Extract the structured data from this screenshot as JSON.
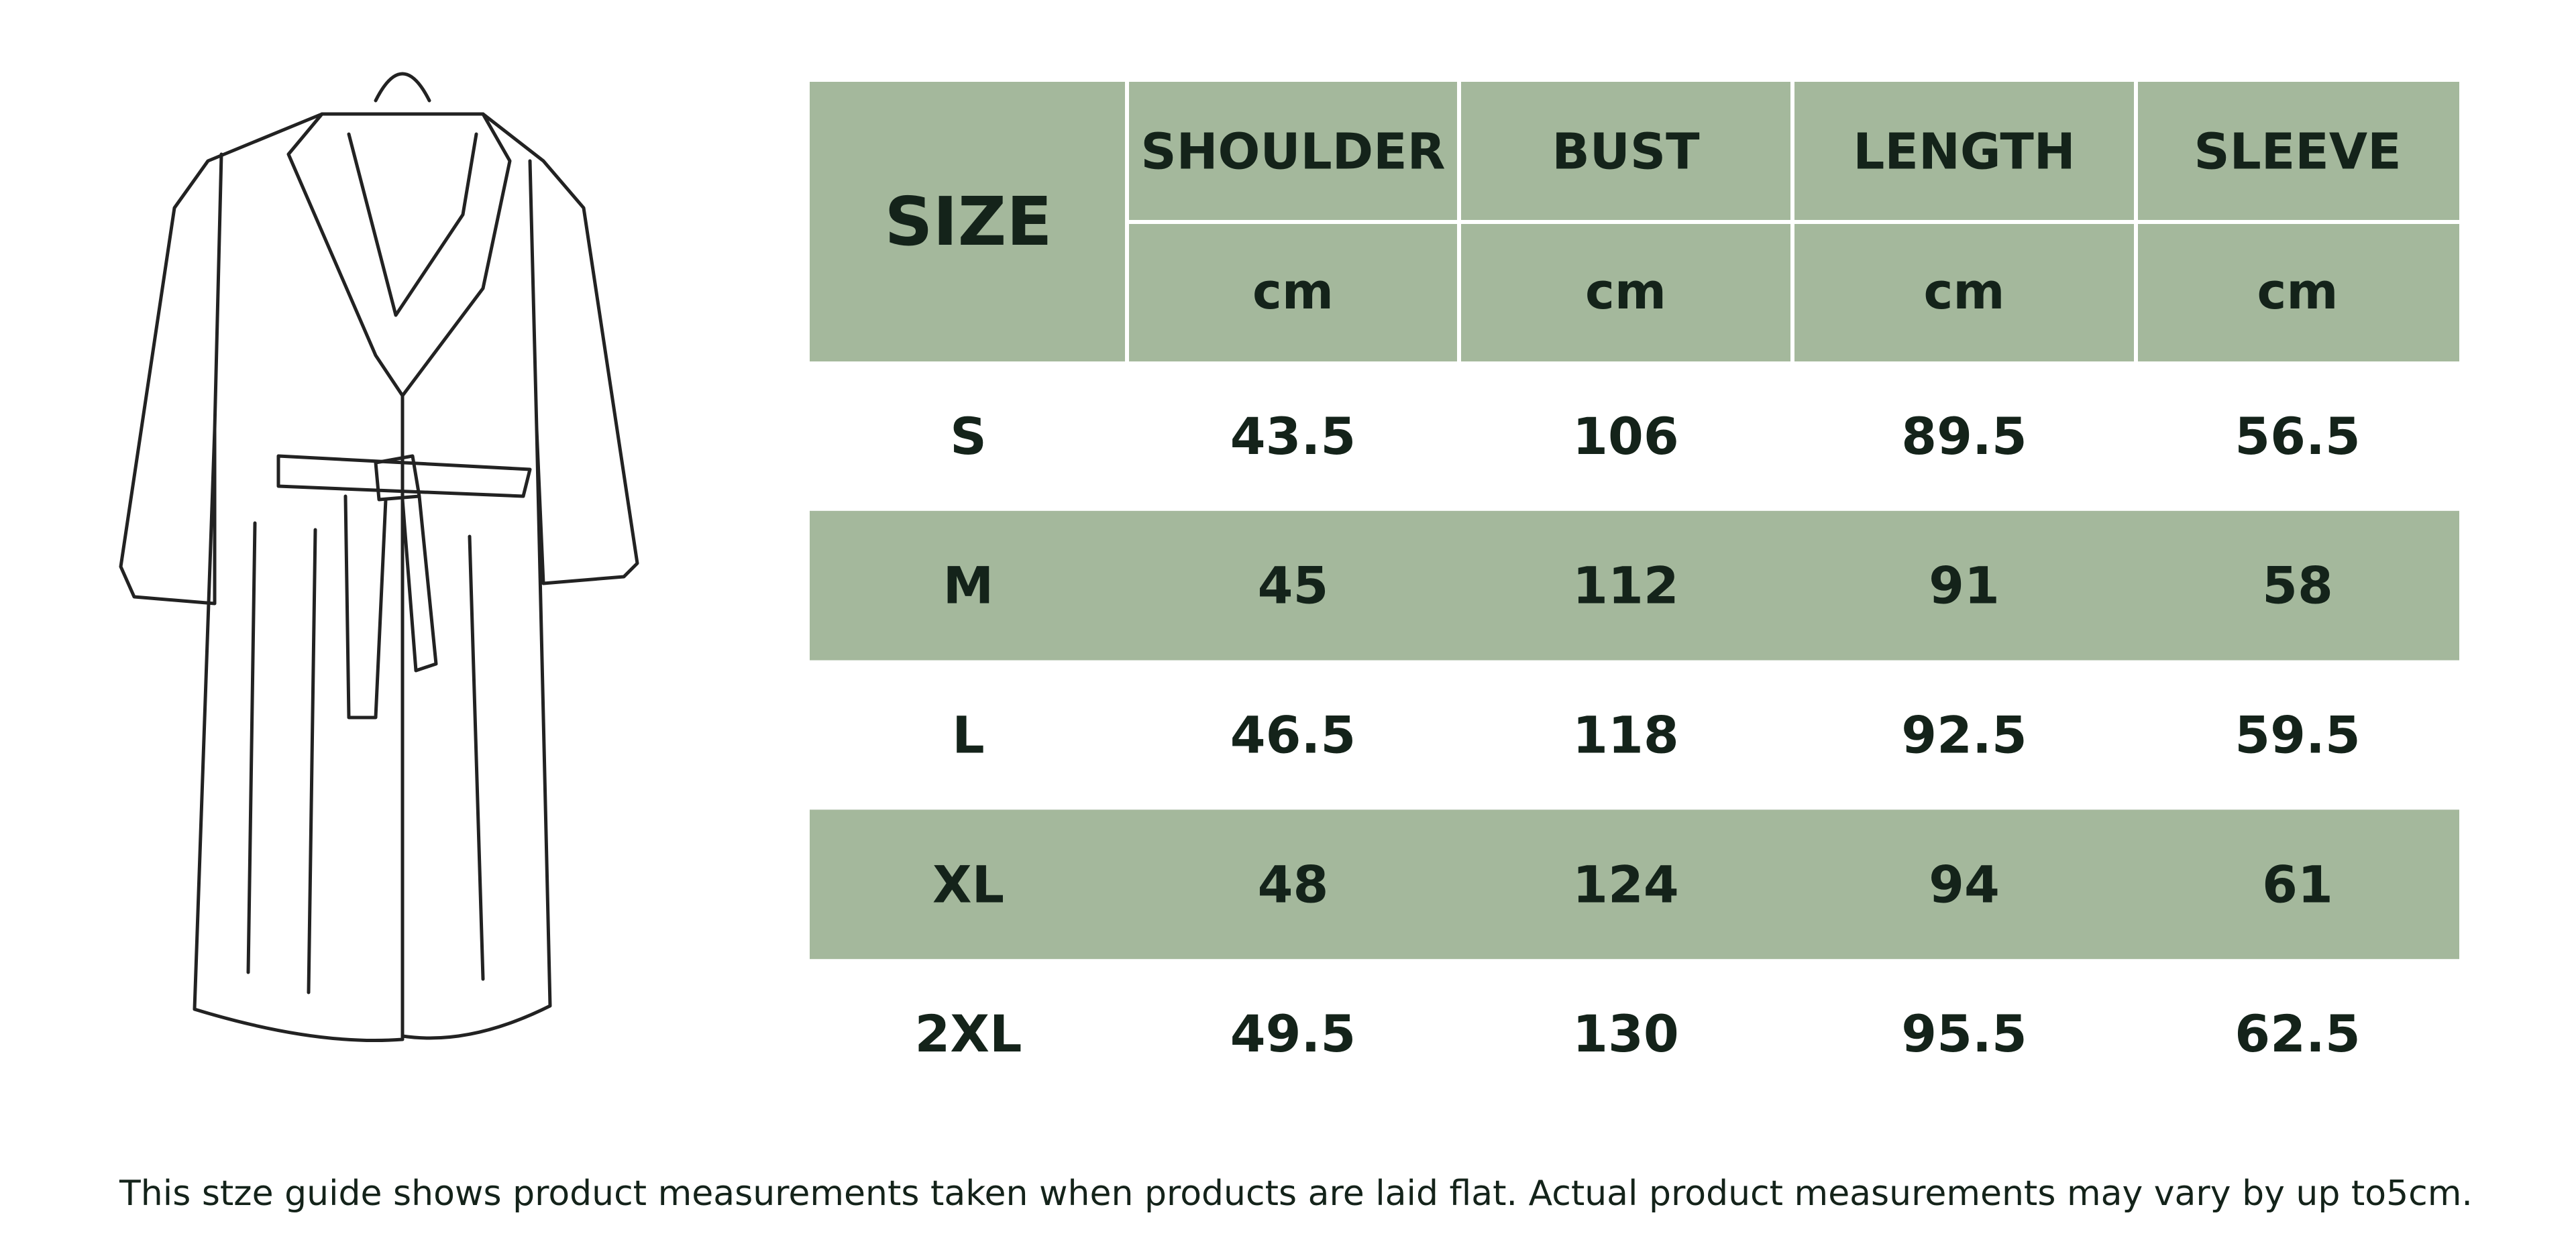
{
  "table": {
    "header": {
      "size_label": "SIZE",
      "columns": [
        {
          "name": "SHOULDER",
          "unit": "cm"
        },
        {
          "name": "BUST",
          "unit": "cm"
        },
        {
          "name": "LENGTH",
          "unit": "cm"
        },
        {
          "name": "SLEEVE",
          "unit": "cm"
        }
      ]
    },
    "rows": [
      [
        "S",
        "43.5",
        "106",
        "89.5",
        "56.5"
      ],
      [
        "M",
        "45",
        "112",
        "91",
        "58"
      ],
      [
        "L",
        "46.5",
        "118",
        "92.5",
        "59.5"
      ],
      [
        "XL",
        "48",
        "124",
        "94",
        "61"
      ],
      [
        "2XL",
        "49.5",
        "130",
        "95.5",
        "62.5"
      ]
    ]
  },
  "footer": "This stze guide shows product measurements taken when products are laid flat. Actual product measurements may vary by up to5cm."
}
